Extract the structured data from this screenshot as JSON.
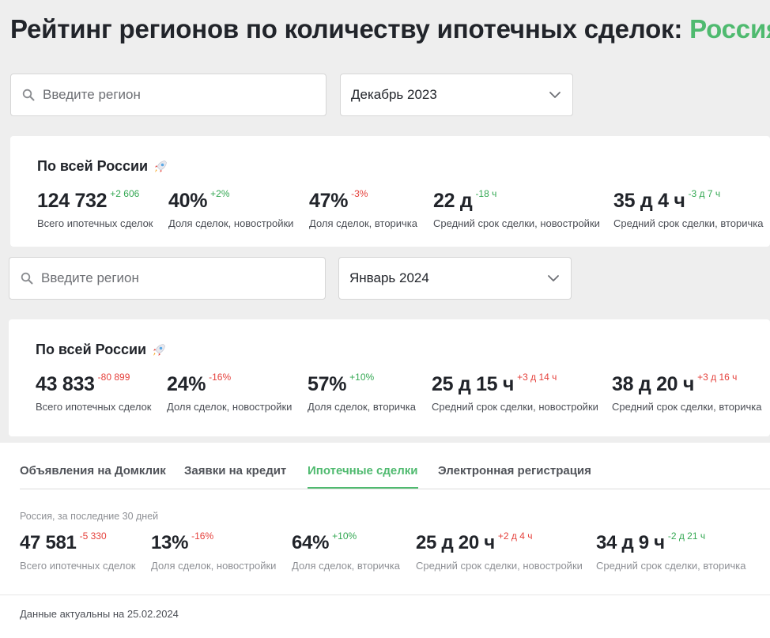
{
  "header": {
    "title": "Рейтинг регионов по количеству ипотечных сделок:",
    "title_accent": "Россия"
  },
  "filters": [
    {
      "search_placeholder": "Введите регион",
      "period": "Декабрь 2023"
    },
    {
      "search_placeholder": "Введите регион",
      "period": "Январь 2024"
    }
  ],
  "blocks": [
    {
      "heading": "По всей России",
      "stats": [
        {
          "value": "124 732",
          "delta": "+2 606",
          "trend": "up",
          "label": "Всего ипотечных сделок"
        },
        {
          "value": "40%",
          "delta": "+2%",
          "trend": "up",
          "label": "Доля сделок, новостройки"
        },
        {
          "value": "47%",
          "delta": "-3%",
          "trend": "down",
          "label": "Доля сделок, вторичка"
        },
        {
          "value": "22 д",
          "delta": "-18 ч",
          "trend": "up",
          "label": "Средний срок сделки, новостройки"
        },
        {
          "value": "35 д 4 ч",
          "delta": "-3 д 7 ч",
          "trend": "up",
          "label": "Средний срок сделки, вторичка"
        }
      ]
    },
    {
      "heading": "По всей России",
      "stats": [
        {
          "value": "43 833",
          "delta": "-80 899",
          "trend": "down",
          "label": "Всего ипотечных сделок"
        },
        {
          "value": "24%",
          "delta": "-16%",
          "trend": "down",
          "label": "Доля сделок, новостройки"
        },
        {
          "value": "57%",
          "delta": "+10%",
          "trend": "up",
          "label": "Доля сделок, вторичка"
        },
        {
          "value": "25 д 15 ч",
          "delta": "+3 д 14 ч",
          "trend": "down",
          "label": "Средний срок сделки, новостройки"
        },
        {
          "value": "38 д 20 ч",
          "delta": "+3 д 16 ч",
          "trend": "down",
          "label": "Средний срок сделки, вторичка"
        }
      ]
    },
    {
      "heading": "Россия, за последние 30 дней",
      "stats": [
        {
          "value": "47 581",
          "delta": "-5 330",
          "trend": "down",
          "label": "Всего ипотечных сделок"
        },
        {
          "value": "13%",
          "delta": "-16%",
          "trend": "down",
          "label": "Доля сделок, новостройки"
        },
        {
          "value": "64%",
          "delta": "+10%",
          "trend": "up",
          "label": "Доля сделок, вторичка"
        },
        {
          "value": "25 д 20 ч",
          "delta": "+2 д 4 ч",
          "trend": "down",
          "label": "Средний срок сделки, новостройки"
        },
        {
          "value": "34 д 9 ч",
          "delta": "-2 д 21 ч",
          "trend": "up",
          "label": "Средний срок сделки, вторичка"
        }
      ]
    }
  ],
  "tabs": [
    {
      "label": "Объявления на Домклик",
      "active": false
    },
    {
      "label": "Заявки на кредит",
      "active": false
    },
    {
      "label": "Ипотечные сделки",
      "active": true
    },
    {
      "label": "Электронная регистрация",
      "active": false
    }
  ],
  "footer": {
    "text": "Данные актуальны на 25.02.2024"
  },
  "colors": {
    "accent": "#4fba6f",
    "up": "#34a853",
    "down": "#e5413c",
    "background": "#eeeeee"
  },
  "icons": {
    "search": "search-icon",
    "dropdown": "chevron-down-icon",
    "heading_emoji": "rocket-icon"
  }
}
